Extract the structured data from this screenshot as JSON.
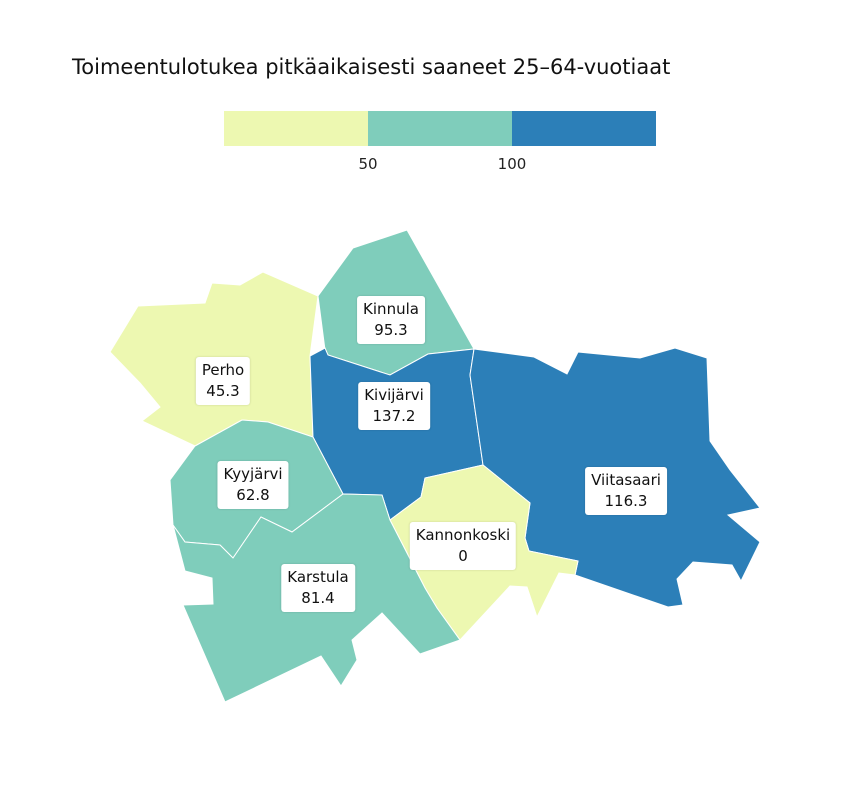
{
  "title": "Toimeentulotukea pitkäaikaisesti saaneet 25–64-vuotiaat",
  "legend": {
    "colors": [
      "#edf8b1",
      "#7fcdbb",
      "#2c7fb8"
    ],
    "ticks": [
      "50",
      "100"
    ]
  },
  "regions": [
    {
      "name": "Perho",
      "value": "45.3",
      "color": "#edf8b1"
    },
    {
      "name": "Kinnula",
      "value": "95.3",
      "color": "#7fcdbb"
    },
    {
      "name": "Kivijärvi",
      "value": "137.2",
      "color": "#2c7fb8"
    },
    {
      "name": "Kyyjärvi",
      "value": "62.8",
      "color": "#7fcdbb"
    },
    {
      "name": "Viitasaari",
      "value": "116.3",
      "color": "#2c7fb8"
    },
    {
      "name": "Kannonkoski",
      "value": "0",
      "color": "#edf8b1"
    },
    {
      "name": "Karstula",
      "value": "81.4",
      "color": "#7fcdbb"
    }
  ]
}
